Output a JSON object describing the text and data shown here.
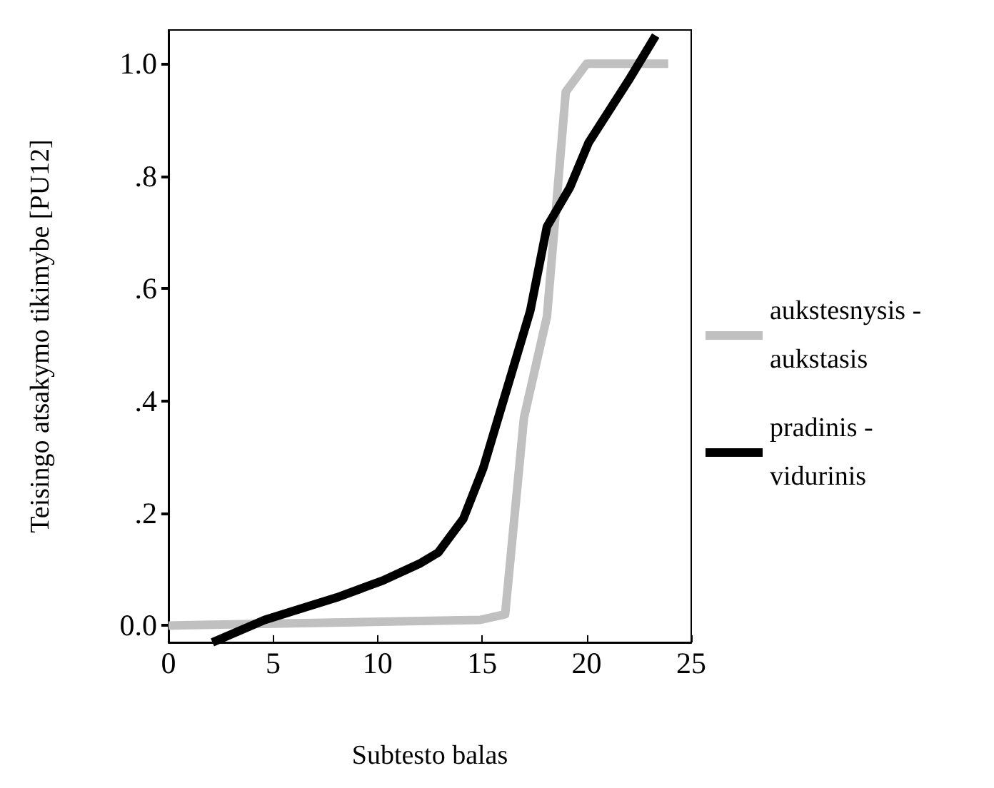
{
  "chart_data": {
    "type": "line",
    "xlabel": "Subtesto balas",
    "ylabel": "Teisingo atsakymo tikimybe [PU12]",
    "xlim": [
      0,
      25
    ],
    "xticks": [
      0,
      5,
      10,
      15,
      20,
      25
    ],
    "ylim": [
      -0.03,
      1.06
    ],
    "yticks": [
      {
        "value": 0,
        "label": "0.0"
      },
      {
        "value": 0.2,
        "label": ".2"
      },
      {
        "value": 0.4,
        "label": ".4"
      },
      {
        "value": 0.6,
        "label": ".6"
      },
      {
        "value": 0.8,
        "label": ".8"
      },
      {
        "value": 1,
        "label": "1.0"
      }
    ],
    "grid": false,
    "legend": "right",
    "marker": "none",
    "line_style": "solid",
    "series": [
      {
        "name": "aukstesnysis - aukstasis",
        "color": "#c0c0c0",
        "x": [
          0,
          14.9,
          16.1,
          17.0,
          18.1,
          19.0,
          20.0,
          23.9
        ],
        "values": [
          0,
          0.01,
          0.02,
          0.37,
          0.55,
          0.95,
          1.0,
          1.0
        ]
      },
      {
        "name": "pradinis - vidurinis",
        "color": "#000000",
        "x": [
          2.1,
          4.6,
          8.05,
          10.25,
          12.0,
          12.9,
          14.1,
          15.05,
          17.3,
          18.1,
          19.2,
          20.1,
          22.0,
          23.3
        ],
        "values": [
          -0.03,
          0.01,
          0.05,
          0.08,
          0.11,
          0.13,
          0.19,
          0.28,
          0.56,
          0.71,
          0.78,
          0.86,
          0.97,
          1.05
        ]
      }
    ]
  }
}
